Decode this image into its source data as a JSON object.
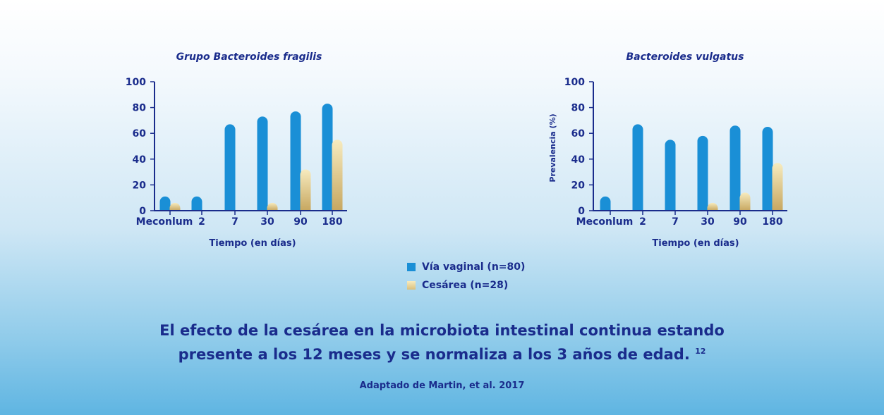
{
  "colors": {
    "vaginal": "#1a8fd6",
    "cesarea_top": "#f7ebbf",
    "cesarea_bottom": "#c7a760",
    "ink": "#1a2c8c"
  },
  "chart_data": [
    {
      "type": "bar",
      "title": "Grupo Bacteroides fragilis",
      "xlabel": "Tiempo (en días)",
      "ylabel": "",
      "categories": [
        "Meconlum",
        "2",
        "7",
        "30",
        "90",
        "180"
      ],
      "yticks": [
        "0",
        "20",
        "40",
        "60",
        "80",
        "100"
      ],
      "ylim": [
        0,
        100
      ],
      "series": [
        {
          "name": "Vía vaginal (n=80)",
          "values": [
            11,
            11,
            67,
            73,
            77,
            83
          ]
        },
        {
          "name": "Cesárea (n=28)",
          "values": [
            4,
            0,
            0,
            4,
            32,
            55
          ]
        }
      ]
    },
    {
      "type": "bar",
      "title": "Bacteroides vulgatus",
      "xlabel": "Tiempo (en días)",
      "ylabel": "Prevalencia (%)",
      "categories": [
        "Meconlum",
        "2",
        "7",
        "30",
        "90",
        "180"
      ],
      "yticks": [
        "0",
        "20",
        "40",
        "60",
        "80",
        "100"
      ],
      "ylim": [
        0,
        100
      ],
      "series": [
        {
          "name": "Vía vaginal (n=80)",
          "values": [
            11,
            67,
            55,
            58,
            66,
            65
          ]
        },
        {
          "name": "Cesárea (n=28)",
          "values": [
            0,
            0,
            0,
            4,
            14,
            37
          ]
        }
      ]
    }
  ],
  "legend": {
    "vaginal_label": "Vía vaginal (n=80)",
    "cesarea_label": "Cesárea (n=28)"
  },
  "headline": {
    "line1": "El efecto de la cesárea en la microbiota intestinal continua estando",
    "line2": "presente a los 12 meses y se normaliza a los 3 años de edad.",
    "ref": "12"
  },
  "source": "Adaptado de Martin, et al. 2017"
}
